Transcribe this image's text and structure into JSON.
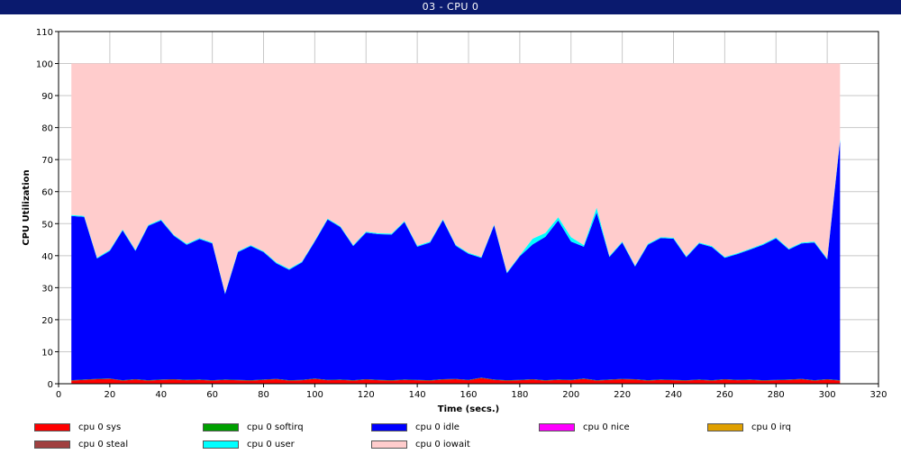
{
  "window": {
    "title": "03 - CPU 0"
  },
  "colors": {
    "sys": "#ff0000",
    "softirq": "#00a000",
    "idle": "#0000ff",
    "nice": "#ff00ff",
    "irq": "#e0a000",
    "steal": "#a04040",
    "user": "#00ffff",
    "iowait": "#ffcccc",
    "grid": "#c8c8c8",
    "axis": "#000000"
  },
  "chart_data": {
    "type": "area",
    "stacked": true,
    "title": "03 - CPU 0",
    "xlabel": "Time (secs.)",
    "ylabel": "CPU Utilization",
    "xlim": [
      0,
      320
    ],
    "ylim": [
      0,
      110
    ],
    "x_ticks": [
      0,
      20,
      40,
      60,
      80,
      100,
      120,
      140,
      160,
      180,
      200,
      220,
      240,
      260,
      280,
      300,
      320
    ],
    "y_ticks": [
      0,
      10,
      20,
      30,
      40,
      50,
      60,
      70,
      80,
      90,
      100,
      110
    ],
    "grid": true,
    "legend_position": "bottom",
    "x": [
      5,
      10,
      15,
      20,
      25,
      30,
      35,
      40,
      45,
      50,
      55,
      60,
      65,
      70,
      75,
      80,
      85,
      90,
      95,
      100,
      105,
      110,
      115,
      120,
      125,
      130,
      135,
      140,
      145,
      150,
      155,
      160,
      165,
      170,
      175,
      180,
      185,
      190,
      195,
      200,
      205,
      210,
      215,
      220,
      225,
      230,
      235,
      240,
      245,
      250,
      255,
      260,
      265,
      270,
      275,
      280,
      285,
      290,
      295,
      300,
      305
    ],
    "series": [
      {
        "name": "cpu 0 sys",
        "key": "sys",
        "values": [
          1.0,
          1.2,
          1.4,
          1.5,
          1.0,
          1.3,
          1.0,
          1.2,
          1.3,
          1.1,
          1.2,
          1.0,
          1.2,
          1.1,
          1.0,
          1.2,
          1.4,
          1.0,
          1.1,
          1.5,
          1.1,
          1.2,
          1.0,
          1.3,
          1.1,
          1.0,
          1.2,
          1.1,
          1.0,
          1.3,
          1.4,
          1.1,
          1.8,
          1.2,
          1.0,
          1.1,
          1.3,
          1.0,
          1.2,
          1.1,
          1.5,
          1.0,
          1.2,
          1.4,
          1.3,
          1.0,
          1.2,
          1.1,
          1.0,
          1.2,
          1.0,
          1.3,
          1.1,
          1.2,
          1.0,
          1.1,
          1.2,
          1.4,
          1.0,
          1.3,
          1.0
        ]
      },
      {
        "name": "cpu 0 softirq",
        "key": "softirq",
        "values": [
          0.1,
          0.1,
          0.1,
          0.1,
          0.1,
          0.1,
          0.1,
          0.1,
          0.1,
          0.1,
          0.1,
          0.1,
          0.1,
          0.1,
          0.1,
          0.1,
          0.1,
          0.1,
          0.1,
          0.1,
          0.1,
          0.1,
          0.1,
          0.1,
          0.1,
          0.1,
          0.1,
          0.1,
          0.1,
          0.1,
          0.1,
          0.1,
          0.1,
          0.1,
          0.1,
          0.1,
          0.1,
          0.1,
          0.1,
          0.1,
          0.1,
          0.1,
          0.1,
          0.1,
          0.1,
          0.1,
          0.1,
          0.1,
          0.1,
          0.1,
          0.1,
          0.1,
          0.1,
          0.1,
          0.1,
          0.1,
          0.1,
          0.1,
          0.1,
          0.1,
          0.1
        ]
      },
      {
        "name": "cpu 0 idle",
        "key": "idle",
        "values": [
          51.3,
          50.8,
          37.6,
          39.9,
          46.8,
          40.1,
          48.2,
          49.7,
          44.8,
          42.2,
          43.9,
          42.7,
          26.7,
          39.9,
          41.9,
          39.8,
          36.1,
          34.5,
          36.7,
          42.8,
          50.1,
          47.6,
          41.9,
          45.8,
          45.5,
          45.5,
          49.2,
          41.6,
          43.0,
          49.7,
          41.6,
          39.4,
          37.4,
          48.2,
          33.4,
          38.6,
          42.1,
          44.8,
          49.7,
          43.2,
          41.2,
          52.4,
          38.3,
          42.6,
          35.2,
          42.3,
          44.2,
          44.1,
          38.4,
          42.5,
          41.6,
          37.9,
          39.3,
          40.6,
          42.3,
          44.2,
          40.6,
          42.3,
          43.0,
          37.4,
          74.8
        ]
      },
      {
        "name": "cpu 0 nice",
        "key": "nice",
        "values": [
          0,
          0,
          0,
          0,
          0,
          0,
          0,
          0,
          0,
          0,
          0,
          0,
          0,
          0,
          0,
          0,
          0,
          0,
          0,
          0,
          0,
          0,
          0,
          0,
          0,
          0,
          0,
          0,
          0,
          0,
          0,
          0,
          0,
          0,
          0,
          0,
          0,
          0,
          0,
          0,
          0,
          0,
          0,
          0,
          0,
          0,
          0,
          0,
          0,
          0,
          0,
          0,
          0,
          0,
          0,
          0,
          0,
          0,
          0,
          0,
          0
        ]
      },
      {
        "name": "cpu 0 irq",
        "key": "irq",
        "values": [
          0,
          0,
          0,
          0,
          0,
          0,
          0,
          0,
          0,
          0,
          0,
          0,
          0,
          0,
          0,
          0,
          0,
          0,
          0,
          0,
          0,
          0,
          0,
          0,
          0,
          0,
          0,
          0,
          0,
          0,
          0,
          0,
          0,
          0,
          0,
          0,
          0,
          0,
          0,
          0,
          0,
          0,
          0,
          0,
          0,
          0,
          0,
          0,
          0,
          0,
          0,
          0,
          0,
          0,
          0,
          0,
          0,
          0,
          0,
          0,
          0
        ]
      },
      {
        "name": "cpu 0 steal",
        "key": "steal",
        "values": [
          0,
          0,
          0,
          0,
          0,
          0,
          0,
          0,
          0,
          0,
          0,
          0,
          0,
          0,
          0,
          0,
          0,
          0,
          0,
          0,
          0,
          0,
          0,
          0,
          0,
          0,
          0,
          0,
          0,
          0,
          0,
          0,
          0,
          0,
          0,
          0,
          0,
          0,
          0,
          0,
          0,
          0,
          0,
          0,
          0,
          0,
          0,
          0,
          0,
          0,
          0,
          0,
          0,
          0,
          0,
          0,
          0,
          0,
          0,
          0,
          0
        ]
      },
      {
        "name": "cpu 0 user",
        "key": "user",
        "values": [
          0.3,
          0.3,
          0.3,
          0.3,
          0.3,
          0.3,
          0.3,
          0.3,
          0.3,
          0.3,
          0.3,
          0.3,
          0.3,
          0.3,
          0.3,
          0.3,
          0.3,
          0.3,
          0.3,
          0.3,
          0.3,
          0.3,
          0.3,
          0.3,
          0.3,
          0.3,
          0.3,
          0.3,
          0.3,
          0.3,
          0.3,
          0.3,
          0.3,
          0.3,
          0.3,
          0.3,
          1.8,
          1.2,
          1.0,
          1.4,
          0.5,
          1.5,
          0.3,
          0.3,
          0.3,
          0.3,
          0.3,
          0.3,
          0.3,
          0.3,
          0.3,
          0.3,
          0.3,
          0.3,
          0.3,
          0.3,
          0.3,
          0.3,
          0.3,
          0.3,
          0.6
        ]
      },
      {
        "name": "cpu 0 iowait",
        "key": "iowait",
        "values": [
          47.3,
          47.6,
          60.6,
          58.2,
          51.8,
          58.2,
          50.4,
          48.7,
          53.5,
          56.3,
          54.5,
          55.9,
          71.7,
          58.6,
          56.7,
          58.6,
          62.1,
          64.1,
          61.8,
          55.3,
          48.4,
          50.8,
          56.7,
          52.5,
          53.0,
          53.1,
          49.2,
          56.9,
          55.6,
          48.6,
          56.6,
          59.1,
          60.4,
          50.2,
          65.2,
          59.9,
          54.7,
          52.9,
          48.0,
          54.2,
          56.7,
          45.0,
          60.1,
          55.6,
          63.1,
          56.3,
          54.2,
          54.4,
          60.2,
          55.9,
          57.0,
          60.4,
          59.2,
          57.8,
          56.3,
          54.3,
          57.8,
          55.9,
          55.6,
          60.9,
          23.5
        ]
      }
    ]
  },
  "legend": {
    "items": [
      {
        "label": "cpu 0 sys",
        "key": "sys"
      },
      {
        "label": "cpu 0 softirq",
        "key": "softirq"
      },
      {
        "label": "cpu 0 idle",
        "key": "idle"
      },
      {
        "label": "cpu 0 nice",
        "key": "nice"
      },
      {
        "label": "cpu 0 irq",
        "key": "irq"
      },
      {
        "label": "cpu 0 steal",
        "key": "steal"
      },
      {
        "label": "cpu 0 user",
        "key": "user"
      },
      {
        "label": "cpu 0 iowait",
        "key": "iowait"
      }
    ]
  }
}
